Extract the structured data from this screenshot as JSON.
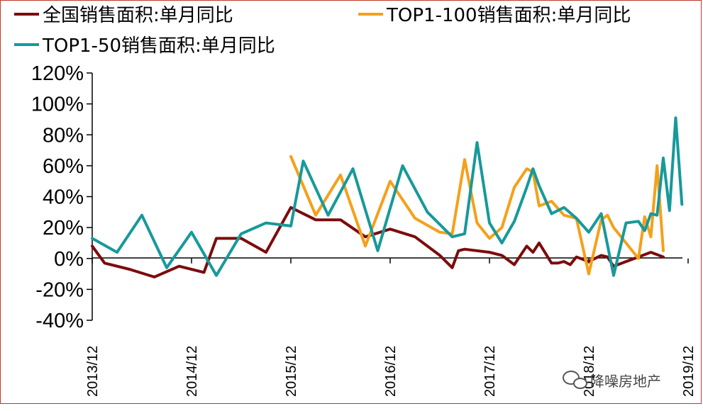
{
  "chart_data": {
    "type": "line",
    "title": "",
    "xlabel": "",
    "ylabel": "",
    "ylim": [
      -40,
      120
    ],
    "yticks": [
      "120%",
      "100%",
      "80%",
      "60%",
      "40%",
      "20%",
      "0%",
      "-20%",
      "-40%"
    ],
    "xticks": [
      "2013/12",
      "2014/12",
      "2015/12",
      "2016/12",
      "2017/12",
      "2018/12",
      "2019/12"
    ],
    "grid": false,
    "legend": "top",
    "colors": {
      "all": "#7b0c0c",
      "top100": "#f5a01a",
      "top50": "#17999a"
    },
    "series": [
      {
        "name": "全国销售面积:单月同比",
        "points": [
          [
            0,
            8
          ],
          [
            1,
            -3
          ],
          [
            3,
            -7
          ],
          [
            5,
            -12
          ],
          [
            7,
            -5
          ],
          [
            9,
            -9
          ],
          [
            10,
            13
          ],
          [
            12,
            13
          ],
          [
            14,
            4
          ],
          [
            16,
            33
          ],
          [
            18,
            25
          ],
          [
            20,
            25
          ],
          [
            22,
            14
          ],
          [
            24,
            19
          ],
          [
            26,
            14
          ],
          [
            28,
            2
          ],
          [
            29,
            -6
          ],
          [
            29.5,
            5
          ],
          [
            30,
            6
          ],
          [
            32,
            4
          ],
          [
            33,
            2
          ],
          [
            34,
            -4
          ],
          [
            35,
            8
          ],
          [
            35.5,
            4
          ],
          [
            36,
            10
          ],
          [
            37,
            -3
          ],
          [
            37.5,
            -3
          ],
          [
            38,
            -2
          ],
          [
            38.5,
            -4
          ],
          [
            39,
            1
          ],
          [
            40,
            -2
          ],
          [
            41,
            2
          ],
          [
            41.5,
            1
          ],
          [
            42,
            -5
          ],
          [
            43,
            -2
          ],
          [
            44,
            1
          ],
          [
            45,
            4
          ],
          [
            46,
            1
          ]
        ]
      },
      {
        "name": "TOP1-100销售面积:单月同比",
        "points": [
          [
            16,
            66
          ],
          [
            18,
            28
          ],
          [
            20,
            54
          ],
          [
            22,
            8
          ],
          [
            24,
            50
          ],
          [
            26,
            26
          ],
          [
            28,
            17
          ],
          [
            29,
            16
          ],
          [
            30,
            64
          ],
          [
            31,
            23
          ],
          [
            32,
            13
          ],
          [
            33,
            20
          ],
          [
            34,
            46
          ],
          [
            35,
            58
          ],
          [
            35.5,
            56
          ],
          [
            36,
            34
          ],
          [
            37,
            37
          ],
          [
            38,
            28
          ],
          [
            39,
            26
          ],
          [
            40,
            -10
          ],
          [
            41,
            25
          ],
          [
            41.5,
            28
          ],
          [
            42,
            20
          ],
          [
            43,
            10
          ],
          [
            44,
            0
          ],
          [
            44.5,
            27
          ],
          [
            45,
            14
          ],
          [
            45.5,
            60
          ],
          [
            46,
            5
          ]
        ]
      },
      {
        "name": "TOP1-50销售面积:单月同比",
        "points": [
          [
            0,
            13
          ],
          [
            2,
            4
          ],
          [
            4,
            28
          ],
          [
            6,
            -6
          ],
          [
            8,
            17
          ],
          [
            10,
            -11
          ],
          [
            12,
            16
          ],
          [
            14,
            23
          ],
          [
            16,
            21
          ],
          [
            17,
            63
          ],
          [
            19,
            28
          ],
          [
            21,
            58
          ],
          [
            23,
            5
          ],
          [
            25,
            60
          ],
          [
            27,
            30
          ],
          [
            29,
            14
          ],
          [
            30,
            16
          ],
          [
            31,
            75
          ],
          [
            32,
            23
          ],
          [
            33,
            10
          ],
          [
            34,
            24
          ],
          [
            35,
            46
          ],
          [
            35.5,
            58
          ],
          [
            36,
            47
          ],
          [
            37,
            29
          ],
          [
            38,
            33
          ],
          [
            39,
            26
          ],
          [
            40,
            17
          ],
          [
            41,
            29
          ],
          [
            42,
            -11
          ],
          [
            43,
            23
          ],
          [
            44,
            24
          ],
          [
            44.5,
            18
          ],
          [
            45,
            29
          ],
          [
            45.5,
            28
          ],
          [
            46,
            65
          ],
          [
            46.5,
            31
          ],
          [
            47,
            91
          ],
          [
            47.5,
            35
          ]
        ]
      }
    ]
  },
  "watermark": {
    "text": "降噪房地产",
    "icon": "wechat-icon"
  }
}
